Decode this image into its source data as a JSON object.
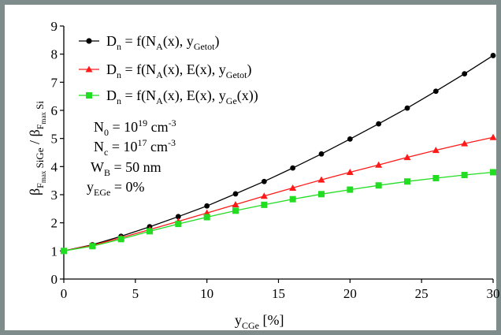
{
  "chart_data": {
    "type": "line",
    "x": [
      0,
      2,
      4,
      6,
      8,
      10,
      12,
      14,
      16,
      18,
      20,
      22,
      24,
      26,
      28,
      30
    ],
    "xlim": [
      0,
      30
    ],
    "ylim": [
      0,
      9
    ],
    "x_ticks": [
      "0",
      "5",
      "10",
      "15",
      "20",
      "25",
      "30"
    ],
    "y_ticks": [
      "0",
      "1",
      "2",
      "3",
      "4",
      "5",
      "6",
      "7",
      "8",
      "9"
    ],
    "xlabel": {
      "base": "y",
      "sub": "CGe",
      "unit": " [%]"
    },
    "ylabel": {
      "beta": "β",
      "F1": "F",
      "max1": "max",
      "s1": " SiGe",
      "slash": " / ",
      "F2": "F",
      "max2": "max",
      "s2": " Si"
    },
    "series": [
      {
        "name": "Dn = f(NA(x), yGetot)",
        "color": "#000000",
        "marker": "circle",
        "values": [
          1.0,
          1.22,
          1.52,
          1.86,
          2.22,
          2.6,
          3.03,
          3.47,
          3.95,
          4.45,
          4.98,
          5.52,
          6.08,
          6.68,
          7.3,
          7.95
        ]
      },
      {
        "name": "Dn = f(NA(x), E(x), yGetot)",
        "color": "#ff1a1a",
        "marker": "triangle",
        "values": [
          1.0,
          1.2,
          1.47,
          1.76,
          2.05,
          2.35,
          2.65,
          2.95,
          3.24,
          3.53,
          3.8,
          4.06,
          4.33,
          4.58,
          4.82,
          5.04
        ]
      },
      {
        "name": "Dn = f(NA(x), E(x), yGe(x))",
        "color": "#22dd22",
        "marker": "square",
        "values": [
          1.0,
          1.17,
          1.42,
          1.7,
          1.96,
          2.2,
          2.43,
          2.64,
          2.84,
          3.02,
          3.18,
          3.33,
          3.47,
          3.59,
          3.7,
          3.8
        ]
      }
    ],
    "legend_placement": "top-left",
    "grid": false
  },
  "legend": [
    {
      "a": "D",
      "a_sub": "n",
      "b": " = f(N",
      "b_sub": "A",
      "c": "(x), y",
      "c_sub": "Getot",
      "d": ")"
    },
    {
      "a": "D",
      "a_sub": "n",
      "b": " = f(N",
      "b_sub": "A",
      "c": "(x), E(x), y",
      "c_sub": "Getot",
      "d": ")"
    },
    {
      "a": "D",
      "a_sub": "n",
      "b": " = f(N",
      "b_sub": "A",
      "c": "(x), E(x), y",
      "c_sub": "Ge",
      "d": "(x))"
    }
  ],
  "annotations": {
    "n0": {
      "base": "N",
      "sub": "0",
      "eq": " = 10",
      "sup": "19",
      "unit": " cm",
      "unit_sup": "-3"
    },
    "nc": {
      "base": "N",
      "sub": "c",
      "eq": " = 10",
      "sup": "17",
      "unit": " cm",
      "unit_sup": "-3"
    },
    "wb": {
      "base": "W",
      "sub": "B",
      "rest": " = 50 nm"
    },
    "yeg": {
      "base": "y",
      "sub": "EGe",
      "rest": " = 0%"
    }
  }
}
